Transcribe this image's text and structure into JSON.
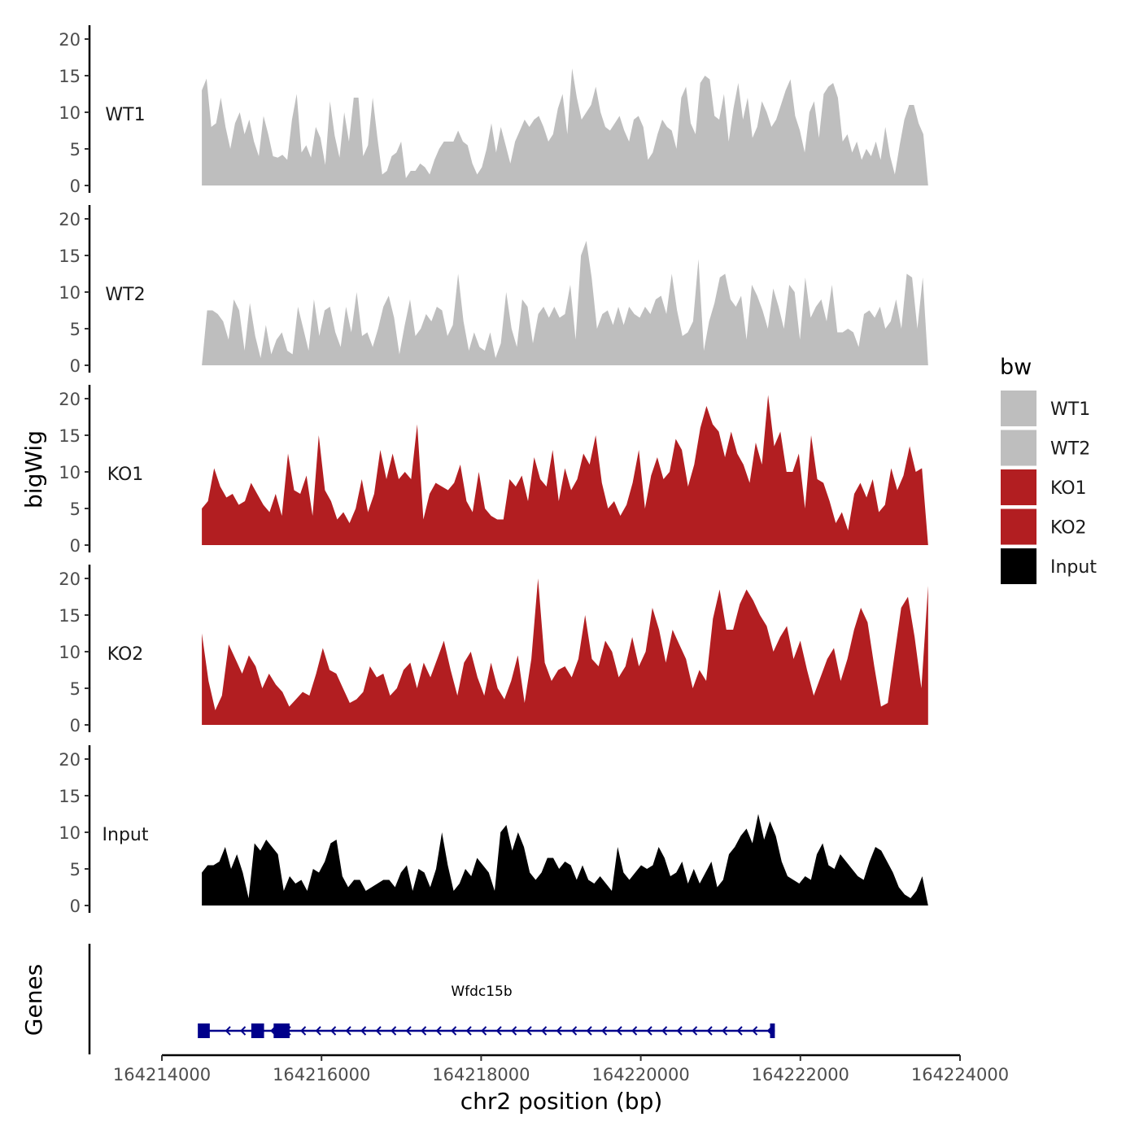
{
  "chart_data": {
    "type": "area",
    "x_axis": {
      "title": "chr2 position (bp)",
      "range": [
        164214000,
        164224000
      ],
      "ticks": [
        164214000,
        164216000,
        164218000,
        164220000,
        164222000,
        164224000
      ],
      "tick_labels": [
        "164214000",
        "164216000",
        "164218000",
        "164220000",
        "164222000",
        "164224000"
      ]
    },
    "y_axis": {
      "title": "bigWig",
      "range": [
        0,
        20
      ],
      "ticks": [
        0,
        5,
        10,
        15,
        20
      ],
      "tick_labels": [
        "0",
        "5",
        "10",
        "15",
        "20"
      ]
    },
    "genes_title": "Genes",
    "x_start": 164214500,
    "x_end": 164223600,
    "series": [
      {
        "name": "WT1",
        "color": "#bebebe",
        "values": [
          13,
          14.6,
          8,
          8.5,
          12,
          8,
          5,
          8.5,
          10,
          7,
          9,
          6,
          4,
          9.5,
          7,
          4,
          3.8,
          4.2,
          3.5,
          9,
          12.5,
          4.5,
          5.5,
          3.8,
          8,
          6.5,
          2.8,
          11.5,
          6.8,
          3.8,
          10,
          6,
          12,
          12,
          4,
          5.5,
          12,
          6.5,
          1.5,
          2,
          4,
          4.5,
          6,
          1,
          2,
          2,
          3,
          2.5,
          1.5,
          3.5,
          5,
          6,
          6,
          6,
          7.5,
          6,
          5.5,
          3,
          1.5,
          2.5,
          5,
          8.5,
          4.5,
          8,
          5.5,
          3,
          6,
          7.5,
          9,
          8,
          9,
          9.5,
          8,
          6,
          7,
          10.5,
          12.5,
          7,
          16,
          12,
          9,
          10,
          11,
          13.5,
          10,
          8,
          7.5,
          8.5,
          9.5,
          7.5,
          6,
          9,
          9.5,
          8,
          3.5,
          4.5,
          7,
          9,
          8,
          7.5,
          5,
          12,
          13.5,
          8.5,
          7,
          14,
          15,
          14.5,
          9.5,
          9,
          12.5,
          6,
          10.5,
          14,
          9,
          12,
          6.5,
          8,
          11.5,
          10,
          8,
          9,
          11,
          13,
          14.5,
          9.5,
          7.5,
          4.5,
          10,
          11.5,
          6.5,
          12.5,
          13.5,
          14,
          12,
          6,
          7,
          4.5,
          6,
          3.5,
          5,
          4,
          6,
          3.5,
          8,
          4,
          1.5,
          5.5,
          9,
          11,
          11,
          8.5,
          7,
          0
        ],
        "visible_fraction": 1
      },
      {
        "name": "WT2",
        "color": "#bebebe",
        "values": [
          0,
          7.5,
          7.5,
          7,
          6,
          3.5,
          9,
          7.5,
          2,
          8.5,
          4,
          1,
          5.5,
          1.5,
          3.5,
          4.5,
          2,
          1.5,
          8,
          5,
          2,
          9,
          4,
          7.5,
          8,
          4.5,
          2.5,
          8,
          4.5,
          10,
          4,
          4.5,
          2.5,
          5,
          8,
          9.5,
          6.5,
          1.5,
          5.5,
          9,
          4,
          5,
          7,
          6,
          8,
          7.5,
          4,
          5.5,
          12.5,
          6,
          2,
          4.5,
          2.5,
          2,
          4.5,
          1,
          3,
          10,
          5,
          2.5,
          9,
          8,
          3,
          7,
          8,
          6.5,
          8,
          6.5,
          7,
          11,
          3.5,
          15,
          17,
          12,
          5,
          7,
          7.5,
          5.5,
          8,
          5.5,
          8,
          7,
          6.5,
          8,
          7,
          9,
          9.5,
          7,
          12.5,
          7.5,
          4,
          4.5,
          6,
          14.5,
          2,
          6,
          8.5,
          12,
          12.5,
          9,
          8,
          9.5,
          3.5,
          11,
          9.5,
          7.5,
          5,
          10.5,
          8,
          5,
          11,
          10,
          3.5,
          12,
          6.5,
          8,
          9,
          6,
          11,
          4.5,
          4.5,
          5,
          4.5,
          2.5,
          7,
          7.5,
          6.5,
          8,
          5,
          6,
          9,
          5,
          12.5,
          12,
          5,
          12,
          0
        ],
        "visible_fraction": 1
      },
      {
        "name": "KO1",
        "color": "#b21e21",
        "values": [
          5,
          6,
          10.5,
          8,
          6.5,
          7,
          5.5,
          6,
          8.5,
          7,
          5.5,
          4.5,
          7,
          4,
          12.5,
          7.5,
          7,
          9.5,
          4,
          15,
          7.5,
          6,
          3.5,
          4.5,
          3,
          5,
          9,
          4.5,
          7,
          13,
          9,
          12.5,
          9,
          10,
          9,
          16.5,
          3.5,
          7,
          8.5,
          8,
          7.5,
          8.5,
          11,
          6,
          4.5,
          10,
          5,
          4,
          3.5,
          3.5,
          9,
          8,
          9.5,
          6,
          12,
          9,
          8,
          13,
          6,
          10.5,
          7.5,
          9,
          12.5,
          11,
          15,
          8.5,
          5,
          6,
          4,
          5.5,
          8.5,
          13,
          5,
          9.5,
          12,
          9,
          10,
          14.5,
          13,
          8,
          11,
          16,
          19,
          16.5,
          15.5,
          12,
          15.5,
          12.5,
          11,
          8.5,
          14,
          11,
          20.5,
          13.5,
          15.5,
          10,
          10,
          12.5,
          5,
          15,
          9,
          8.5,
          6,
          3,
          4.5,
          2,
          7,
          8.5,
          6.5,
          9,
          4.5,
          5.5,
          10.5,
          7.5,
          9.5,
          13.5,
          10,
          10.5,
          0
        ],
        "visible_fraction": 1
      },
      {
        "name": "KO2",
        "color": "#b21e21",
        "values": [
          12.5,
          6,
          2,
          4,
          11,
          9,
          7,
          9.5,
          8,
          5,
          7,
          5.5,
          4.5,
          2.5,
          3.5,
          4.5,
          4,
          7,
          10.5,
          7.5,
          7,
          5,
          3,
          3.5,
          4.5,
          8,
          6.5,
          7,
          4,
          5,
          7.5,
          8.5,
          5,
          8.5,
          6.5,
          9,
          11.5,
          7.5,
          4,
          8.5,
          10,
          6.5,
          4,
          8.5,
          5,
          3.5,
          6,
          9.5,
          3,
          9,
          20,
          8.5,
          6,
          7.5,
          8,
          6.5,
          9,
          15,
          9,
          8,
          11.5,
          10,
          6.5,
          8,
          12,
          8,
          10,
          16,
          13,
          8.5,
          13,
          11,
          9,
          5,
          7.5,
          6,
          14.5,
          18.5,
          13,
          13,
          16.5,
          18.5,
          17,
          15,
          13.5,
          10,
          12,
          13.5,
          9,
          11.5,
          7.5,
          4,
          6.5,
          9,
          10.5,
          6,
          9,
          13,
          16,
          14,
          8,
          2.5,
          3,
          9.5,
          16,
          17.5,
          12,
          5,
          19
        ],
        "visible_fraction": 1
      },
      {
        "name": "Input",
        "color": "#000000",
        "values": [
          4.5,
          5.5,
          5.5,
          6,
          8,
          5,
          7,
          4.5,
          1,
          8.5,
          7.5,
          9,
          8,
          7,
          2,
          4,
          3,
          3.5,
          2,
          5,
          4.5,
          6,
          8.5,
          9,
          4,
          2.5,
          3.5,
          3.5,
          2,
          2.5,
          3,
          3.5,
          3.5,
          2.5,
          4.5,
          5.5,
          2,
          5,
          4.5,
          2.5,
          5,
          10,
          5.5,
          2,
          3,
          5,
          4,
          6.5,
          5.5,
          4.5,
          2,
          10,
          11,
          7.5,
          10,
          8,
          4.5,
          3.5,
          4.5,
          6.5,
          6.5,
          5,
          6,
          5.5,
          3.5,
          5.5,
          3.5,
          3,
          4,
          3,
          2,
          8,
          4.5,
          3.5,
          4.5,
          5.5,
          5,
          5.5,
          8,
          6.5,
          4,
          4.5,
          6,
          3,
          5,
          3,
          4.5,
          6,
          2.5,
          3.5,
          7,
          8,
          9.5,
          10.5,
          8.5,
          12.5,
          9,
          11.5,
          9.5,
          6,
          4,
          3.5,
          3,
          4,
          3.5,
          7,
          8.5,
          5.5,
          5,
          7,
          6,
          5,
          4,
          3.5,
          6,
          8,
          7.5,
          6,
          4.5,
          2.5,
          1.5,
          1,
          2,
          4,
          0
        ],
        "visible_fraction": 1
      }
    ],
    "legend": {
      "title": "bw",
      "position": "right",
      "entries": [
        {
          "label": "WT1",
          "color": "#bebebe"
        },
        {
          "label": "WT2",
          "color": "#bebebe"
        },
        {
          "label": "KO1",
          "color": "#b21e21"
        },
        {
          "label": "KO2",
          "color": "#b21e21"
        },
        {
          "label": "Input",
          "color": "#000000"
        }
      ]
    },
    "gene": {
      "name": "Wfdc15b",
      "strand": "-",
      "color": "#00008b",
      "start": 164214520,
      "end": 164221680,
      "exons": [
        [
          164214450,
          164214600
        ],
        [
          164215120,
          164215280
        ],
        [
          164215400,
          164215600
        ],
        [
          164221620,
          164221680
        ]
      ]
    }
  }
}
